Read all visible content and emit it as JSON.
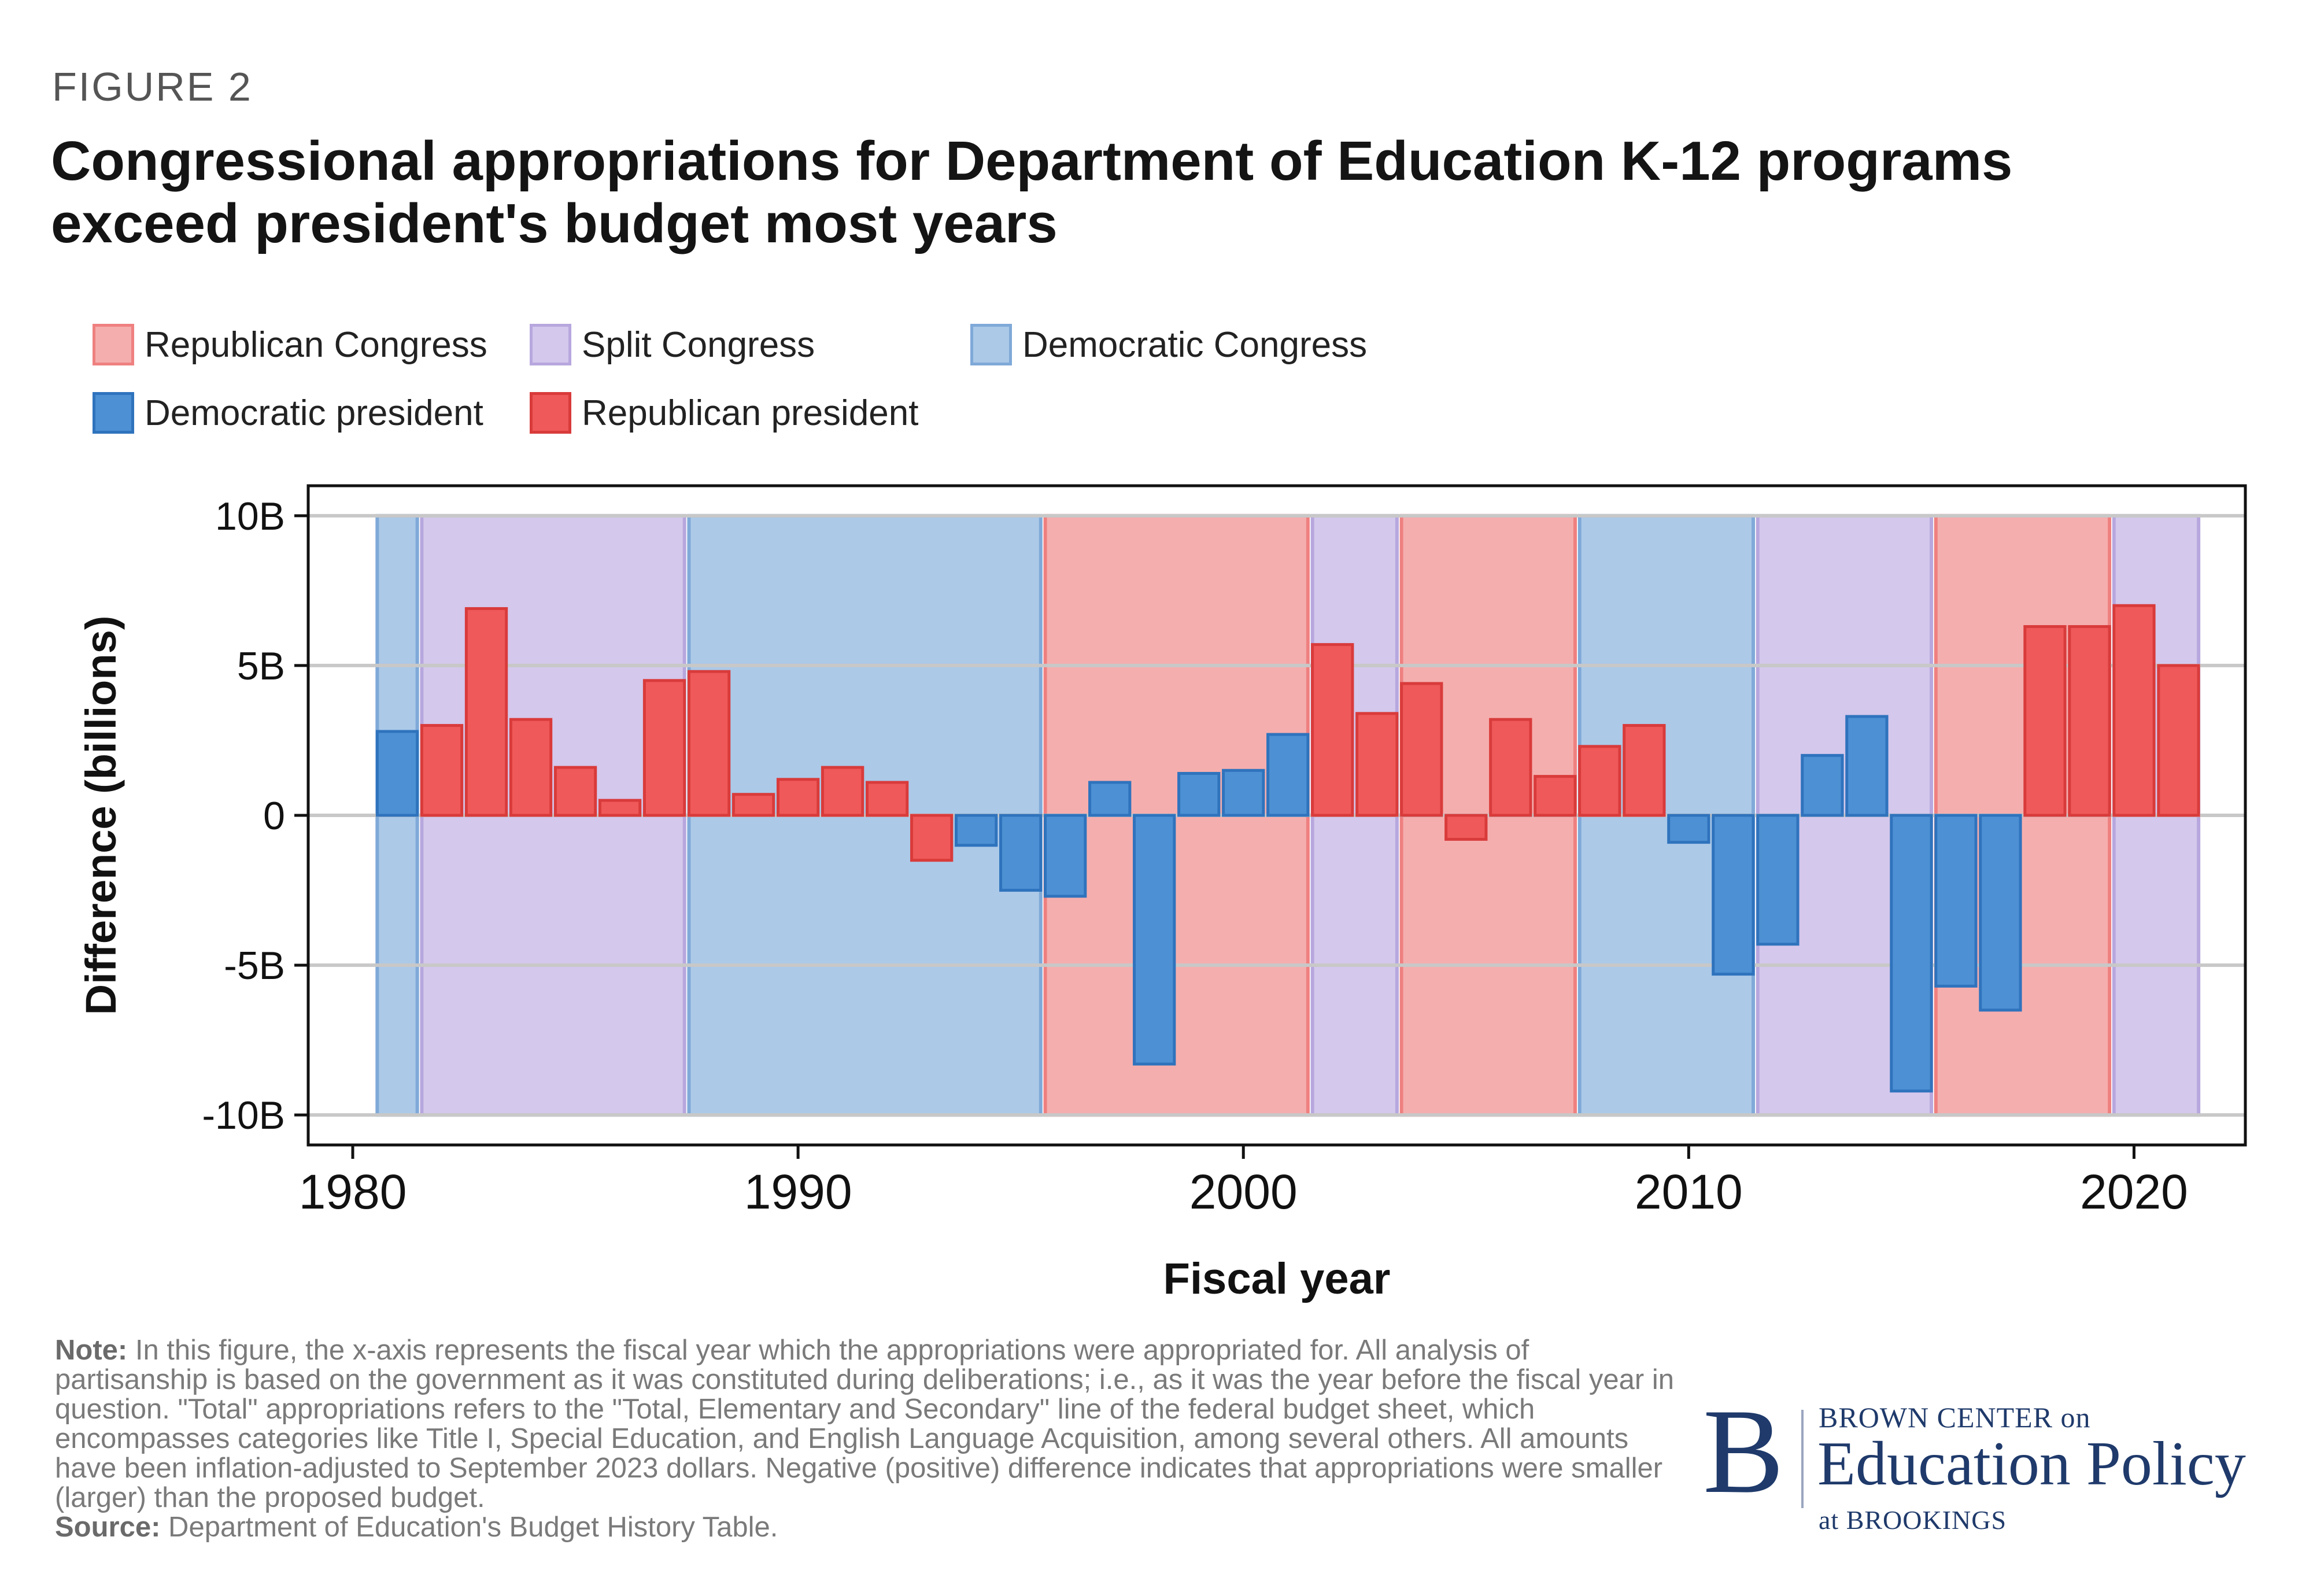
{
  "figure_label": "FIGURE 2",
  "title_lines": [
    "Congressional appropriations for Department of Education K-12 programs",
    "exceed president's budget most years"
  ],
  "colors": {
    "republican_congress_fill": "#f5aeae",
    "republican_congress_stroke": "#ef8080",
    "split_congress_fill": "#d4c8ec",
    "split_congress_stroke": "#b7a7de",
    "democratic_congress_fill": "#acc9e8",
    "democratic_congress_stroke": "#7fa9d8",
    "democratic_president": "#4d90d3",
    "democratic_president_stroke": "#2f73bd",
    "republican_president": "#ef5959",
    "republican_president_stroke": "#d93b3b"
  },
  "legend": [
    {
      "label": "Republican Congress",
      "color_key": "republican_congress"
    },
    {
      "label": "Split Congress",
      "color_key": "split_congress"
    },
    {
      "label": "Democratic Congress",
      "color_key": "democratic_congress"
    },
    {
      "label": "Democratic president",
      "color_key": "democratic_president"
    },
    {
      "label": "Republican president",
      "color_key": "republican_president"
    }
  ],
  "chart_data": {
    "type": "bar",
    "xlabel": "Fiscal year",
    "ylabel": "Difference (billions)",
    "xlim": [
      1979,
      2022.5
    ],
    "ylim": [
      -11,
      11
    ],
    "x_ticks": [
      1980,
      1990,
      2000,
      2010,
      2020
    ],
    "x_tick_labels": [
      "1980",
      "1990",
      "2000",
      "2010",
      "2020"
    ],
    "y_ticks": [
      10,
      5,
      0,
      -5,
      -10
    ],
    "y_tick_labels": [
      "10B",
      "5B",
      "0",
      "-5B",
      "-10B"
    ],
    "grid": "horizontal",
    "legend_position": "top",
    "congress_periods": [
      {
        "start": 1981,
        "end": 1981,
        "control": "democratic_congress"
      },
      {
        "start": 1982,
        "end": 1987,
        "control": "split_congress"
      },
      {
        "start": 1988,
        "end": 1995,
        "control": "democratic_congress"
      },
      {
        "start": 1996,
        "end": 2001,
        "control": "republican_congress"
      },
      {
        "start": 2002,
        "end": 2003,
        "control": "split_congress"
      },
      {
        "start": 2004,
        "end": 2007,
        "control": "republican_congress"
      },
      {
        "start": 2008,
        "end": 2011,
        "control": "democratic_congress"
      },
      {
        "start": 2012,
        "end": 2015,
        "control": "split_congress"
      },
      {
        "start": 2016,
        "end": 2019,
        "control": "republican_congress"
      },
      {
        "start": 2020,
        "end": 2021,
        "control": "split_congress"
      }
    ],
    "bars": [
      {
        "year": 1981,
        "value": 2.8,
        "president": "democratic_president"
      },
      {
        "year": 1982,
        "value": 3.0,
        "president": "republican_president"
      },
      {
        "year": 1983,
        "value": 6.9,
        "president": "republican_president"
      },
      {
        "year": 1984,
        "value": 3.2,
        "president": "republican_president"
      },
      {
        "year": 1985,
        "value": 1.6,
        "president": "republican_president"
      },
      {
        "year": 1986,
        "value": 0.5,
        "president": "republican_president"
      },
      {
        "year": 1987,
        "value": 4.5,
        "president": "republican_president"
      },
      {
        "year": 1988,
        "value": 4.8,
        "president": "republican_president"
      },
      {
        "year": 1989,
        "value": 0.7,
        "president": "republican_president"
      },
      {
        "year": 1990,
        "value": 1.2,
        "president": "republican_president"
      },
      {
        "year": 1991,
        "value": 1.6,
        "president": "republican_president"
      },
      {
        "year": 1992,
        "value": 1.1,
        "president": "republican_president"
      },
      {
        "year": 1993,
        "value": -1.5,
        "president": "republican_president"
      },
      {
        "year": 1994,
        "value": -1.0,
        "president": "democratic_president"
      },
      {
        "year": 1995,
        "value": -2.5,
        "president": "democratic_president"
      },
      {
        "year": 1996,
        "value": -2.7,
        "president": "democratic_president"
      },
      {
        "year": 1997,
        "value": 1.1,
        "president": "democratic_president"
      },
      {
        "year": 1998,
        "value": -8.3,
        "president": "democratic_president"
      },
      {
        "year": 1999,
        "value": 1.4,
        "president": "democratic_president"
      },
      {
        "year": 2000,
        "value": 1.5,
        "president": "democratic_president"
      },
      {
        "year": 2001,
        "value": 2.7,
        "president": "democratic_president"
      },
      {
        "year": 2002,
        "value": 5.7,
        "president": "republican_president"
      },
      {
        "year": 2003,
        "value": 3.4,
        "president": "republican_president"
      },
      {
        "year": 2004,
        "value": 4.4,
        "president": "republican_president"
      },
      {
        "year": 2005,
        "value": -0.8,
        "president": "republican_president"
      },
      {
        "year": 2006,
        "value": 3.2,
        "president": "republican_president"
      },
      {
        "year": 2007,
        "value": 1.3,
        "president": "republican_president"
      },
      {
        "year": 2008,
        "value": 2.3,
        "president": "republican_president"
      },
      {
        "year": 2009,
        "value": 3.0,
        "president": "republican_president"
      },
      {
        "year": 2010,
        "value": -0.9,
        "president": "democratic_president"
      },
      {
        "year": 2011,
        "value": -5.3,
        "president": "democratic_president"
      },
      {
        "year": 2012,
        "value": -4.3,
        "president": "democratic_president"
      },
      {
        "year": 2013,
        "value": 2.0,
        "president": "democratic_president"
      },
      {
        "year": 2014,
        "value": 3.3,
        "president": "democratic_president"
      },
      {
        "year": 2015,
        "value": -9.2,
        "president": "democratic_president"
      },
      {
        "year": 2016,
        "value": -5.7,
        "president": "democratic_president"
      },
      {
        "year": 2017,
        "value": -6.5,
        "president": "democratic_president"
      },
      {
        "year": 2018,
        "value": 6.3,
        "president": "republican_president"
      },
      {
        "year": 2019,
        "value": 6.3,
        "president": "republican_president"
      },
      {
        "year": 2020,
        "value": 7.0,
        "president": "republican_president"
      },
      {
        "year": 2021,
        "value": 5.0,
        "president": "republican_president"
      }
    ]
  },
  "note": {
    "note_label": "Note:",
    "note_text": " In this figure, the x-axis represents the fiscal year which the appropriations were appropriated for. All analysis of partisanship is based on the government as it was constituted during deliberations; i.e., as it was the year before the fiscal year in question. \"Total\" appropriations refers to the \"Total, Elementary and Secondary\" line of the federal budget sheet, which encompasses categories like Title I, Special Education, and English Language Acquisition, among several others. All amounts have been inflation-adjusted to September 2023 dollars. Negative (positive) difference indicates that appropriations were smaller (larger) than the proposed budget.",
    "source_label": "Source:",
    "source_text": " Department of Education's Budget History Table."
  },
  "logo": {
    "letter": "B",
    "top_line": "BROWN CENTER on",
    "main_line": "Education Policy",
    "bottom_line": "at BROOKINGS"
  }
}
